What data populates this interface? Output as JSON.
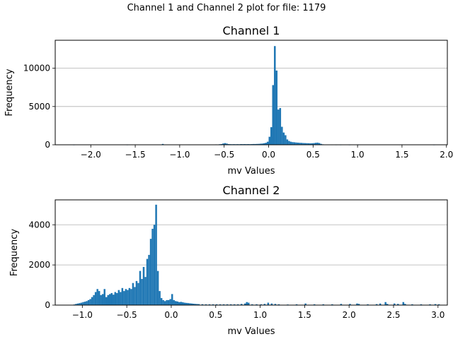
{
  "figure": {
    "suptitle": "Channel 1 and Channel 2 plot for file: 1179"
  },
  "chart_data": [
    {
      "type": "bar",
      "title": "Channel 1",
      "xlabel": "mv Values",
      "ylabel": "Frequency",
      "xlim": [
        -2.4,
        2.01
      ],
      "ylim": [
        0,
        13660
      ],
      "xticks": [
        -2.0,
        -1.5,
        -1.0,
        -0.5,
        0.0,
        0.5,
        1.0,
        1.5,
        2.0
      ],
      "xtick_labels": [
        "−2.0",
        "−1.5",
        "−1.0",
        "−0.5",
        "0.0",
        "0.5",
        "1.0",
        "1.5",
        "2.0"
      ],
      "yticks": [
        0,
        5000,
        10000
      ],
      "ytick_labels": [
        "0",
        "5000",
        "10000"
      ],
      "grid": "y",
      "color": "#1f77b4",
      "bin_width": 0.02,
      "bins": [
        [
          -2.2,
          2
        ],
        [
          -1.6,
          3
        ],
        [
          -1.2,
          110
        ],
        [
          -0.9,
          8
        ],
        [
          -0.62,
          40
        ],
        [
          -0.6,
          50
        ],
        [
          -0.58,
          40
        ],
        [
          -0.56,
          70
        ],
        [
          -0.54,
          90
        ],
        [
          -0.52,
          170
        ],
        [
          -0.5,
          220
        ],
        [
          -0.48,
          160
        ],
        [
          -0.46,
          90
        ],
        [
          -0.44,
          80
        ],
        [
          -0.42,
          70
        ],
        [
          -0.4,
          80
        ],
        [
          -0.38,
          70
        ],
        [
          -0.36,
          80
        ],
        [
          -0.34,
          70
        ],
        [
          -0.32,
          90
        ],
        [
          -0.3,
          80
        ],
        [
          -0.28,
          90
        ],
        [
          -0.26,
          80
        ],
        [
          -0.24,
          90
        ],
        [
          -0.22,
          80
        ],
        [
          -0.2,
          90
        ],
        [
          -0.18,
          100
        ],
        [
          -0.16,
          100
        ],
        [
          -0.14,
          110
        ],
        [
          -0.12,
          120
        ],
        [
          -0.1,
          140
        ],
        [
          -0.08,
          160
        ],
        [
          -0.06,
          200
        ],
        [
          -0.04,
          260
        ],
        [
          -0.02,
          400
        ],
        [
          0.0,
          1050
        ],
        [
          0.02,
          2300
        ],
        [
          0.04,
          7800
        ],
        [
          0.06,
          12900
        ],
        [
          0.08,
          9700
        ],
        [
          0.1,
          4600
        ],
        [
          0.12,
          4800
        ],
        [
          0.14,
          2350
        ],
        [
          0.16,
          1600
        ],
        [
          0.18,
          1250
        ],
        [
          0.2,
          700
        ],
        [
          0.22,
          500
        ],
        [
          0.24,
          400
        ],
        [
          0.26,
          350
        ],
        [
          0.28,
          330
        ],
        [
          0.3,
          300
        ],
        [
          0.32,
          280
        ],
        [
          0.34,
          260
        ],
        [
          0.36,
          250
        ],
        [
          0.38,
          230
        ],
        [
          0.4,
          220
        ],
        [
          0.42,
          210
        ],
        [
          0.44,
          200
        ],
        [
          0.46,
          190
        ],
        [
          0.48,
          200
        ],
        [
          0.5,
          220
        ],
        [
          0.52,
          260
        ],
        [
          0.54,
          280
        ],
        [
          0.56,
          230
        ],
        [
          0.58,
          120
        ],
        [
          0.6,
          60
        ],
        [
          0.62,
          30
        ],
        [
          0.64,
          20
        ],
        [
          0.66,
          15
        ],
        [
          0.68,
          10
        ],
        [
          0.7,
          8
        ],
        [
          0.75,
          5
        ],
        [
          0.8,
          4
        ],
        [
          0.9,
          3
        ],
        [
          1.0,
          2
        ],
        [
          1.85,
          2
        ]
      ]
    },
    {
      "type": "bar",
      "title": "Channel 2",
      "xlabel": "mv Values",
      "ylabel": "Frequency",
      "xlim": [
        -1.305,
        3.105
      ],
      "ylim": [
        0,
        5240
      ],
      "xticks": [
        -1.0,
        -0.5,
        0.0,
        0.5,
        1.0,
        1.5,
        2.0,
        2.5,
        3.0
      ],
      "xtick_labels": [
        "−1.0",
        "−0.5",
        "0.0",
        "0.5",
        "1.0",
        "1.5",
        "2.0",
        "2.5",
        "3.0"
      ],
      "yticks": [
        0,
        2000,
        4000
      ],
      "ytick_labels": [
        "0",
        "2000",
        "4000"
      ],
      "grid": "y",
      "color": "#1f77b4",
      "bin_width": 0.02,
      "bins": [
        [
          -1.1,
          30
        ],
        [
          -1.08,
          60
        ],
        [
          -1.06,
          80
        ],
        [
          -1.04,
          100
        ],
        [
          -1.02,
          120
        ],
        [
          -1.0,
          150
        ],
        [
          -0.98,
          170
        ],
        [
          -0.96,
          200
        ],
        [
          -0.94,
          250
        ],
        [
          -0.92,
          300
        ],
        [
          -0.9,
          400
        ],
        [
          -0.88,
          500
        ],
        [
          -0.86,
          650
        ],
        [
          -0.84,
          800
        ],
        [
          -0.82,
          700
        ],
        [
          -0.8,
          500
        ],
        [
          -0.78,
          550
        ],
        [
          -0.76,
          800
        ],
        [
          -0.74,
          400
        ],
        [
          -0.72,
          500
        ],
        [
          -0.7,
          550
        ],
        [
          -0.68,
          600
        ],
        [
          -0.66,
          520
        ],
        [
          -0.64,
          650
        ],
        [
          -0.62,
          600
        ],
        [
          -0.6,
          750
        ],
        [
          -0.58,
          650
        ],
        [
          -0.56,
          850
        ],
        [
          -0.54,
          700
        ],
        [
          -0.52,
          800
        ],
        [
          -0.5,
          750
        ],
        [
          -0.48,
          850
        ],
        [
          -0.46,
          800
        ],
        [
          -0.44,
          1100
        ],
        [
          -0.42,
          900
        ],
        [
          -0.4,
          1200
        ],
        [
          -0.38,
          1100
        ],
        [
          -0.36,
          1700
        ],
        [
          -0.34,
          1300
        ],
        [
          -0.32,
          1900
        ],
        [
          -0.3,
          1400
        ],
        [
          -0.28,
          2300
        ],
        [
          -0.26,
          2500
        ],
        [
          -0.24,
          3300
        ],
        [
          -0.22,
          3800
        ],
        [
          -0.2,
          4000
        ],
        [
          -0.18,
          5000
        ],
        [
          -0.16,
          1700
        ],
        [
          -0.14,
          700
        ],
        [
          -0.12,
          350
        ],
        [
          -0.1,
          250
        ],
        [
          -0.08,
          200
        ],
        [
          -0.06,
          250
        ],
        [
          -0.04,
          250
        ],
        [
          -0.02,
          300
        ],
        [
          0.0,
          550
        ],
        [
          0.02,
          250
        ],
        [
          0.04,
          200
        ],
        [
          0.06,
          180
        ],
        [
          0.08,
          150
        ],
        [
          0.1,
          160
        ],
        [
          0.12,
          140
        ],
        [
          0.14,
          120
        ],
        [
          0.16,
          110
        ],
        [
          0.18,
          100
        ],
        [
          0.2,
          90
        ],
        [
          0.22,
          80
        ],
        [
          0.24,
          70
        ],
        [
          0.26,
          60
        ],
        [
          0.28,
          55
        ],
        [
          0.3,
          50
        ],
        [
          0.34,
          45
        ],
        [
          0.38,
          40
        ],
        [
          0.42,
          40
        ],
        [
          0.46,
          40
        ],
        [
          0.5,
          40
        ],
        [
          0.54,
          40
        ],
        [
          0.58,
          40
        ],
        [
          0.62,
          40
        ],
        [
          0.66,
          40
        ],
        [
          0.7,
          40
        ],
        [
          0.74,
          40
        ],
        [
          0.78,
          60
        ],
        [
          0.82,
          80
        ],
        [
          0.84,
          150
        ],
        [
          0.86,
          120
        ],
        [
          0.9,
          40
        ],
        [
          0.95,
          40
        ],
        [
          1.0,
          40
        ],
        [
          1.04,
          60
        ],
        [
          1.08,
          120
        ],
        [
          1.12,
          80
        ],
        [
          1.16,
          60
        ],
        [
          1.2,
          40
        ],
        [
          1.3,
          30
        ],
        [
          1.4,
          40
        ],
        [
          1.5,
          80
        ],
        [
          1.6,
          40
        ],
        [
          1.7,
          40
        ],
        [
          1.8,
          40
        ],
        [
          1.9,
          60
        ],
        [
          2.0,
          60
        ],
        [
          2.08,
          80
        ],
        [
          2.1,
          60
        ],
        [
          2.2,
          40
        ],
        [
          2.3,
          50
        ],
        [
          2.34,
          80
        ],
        [
          2.4,
          150
        ],
        [
          2.42,
          60
        ],
        [
          2.5,
          80
        ],
        [
          2.54,
          60
        ],
        [
          2.6,
          150
        ],
        [
          2.62,
          60
        ],
        [
          2.7,
          40
        ],
        [
          2.8,
          40
        ],
        [
          2.9,
          40
        ],
        [
          2.96,
          50
        ],
        [
          3.0,
          40
        ]
      ]
    }
  ]
}
